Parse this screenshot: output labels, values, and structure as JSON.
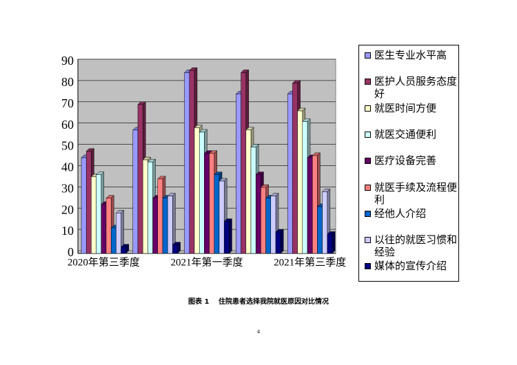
{
  "chart_data": {
    "type": "bar3d",
    "caption": "图表 1　 住院患者选择我院就医原因对比情况",
    "page_number": "4",
    "categories": [
      "2020年第三季度",
      null,
      "2021年第一季度",
      null,
      "2021年第三季度"
    ],
    "ylim": [
      0,
      90
    ],
    "yticks": [
      0,
      10,
      20,
      30,
      40,
      50,
      60,
      70,
      80,
      90
    ],
    "grid": true,
    "legend": "right",
    "series": [
      {
        "name": "医生专业水平高",
        "color": "#9999ff",
        "values": [
          45,
          58,
          85,
          75,
          75
        ]
      },
      {
        "name": "医护人员服务态度好",
        "color": "#993366",
        "values": [
          48,
          70,
          86,
          85,
          80
        ]
      },
      {
        "name": "就医时间方便",
        "color": "#ffffcc",
        "values": [
          36,
          44,
          59,
          58,
          67
        ]
      },
      {
        "name": "就医交通便利",
        "color": "#ccffff",
        "values": [
          37,
          43,
          57,
          50,
          62
        ]
      },
      {
        "name": "医疗设备完善",
        "color": "#660066",
        "values": [
          23,
          26,
          47,
          37,
          45
        ]
      },
      {
        "name": "就医手续及流程便利",
        "color": "#ff8080",
        "values": [
          26,
          35,
          47,
          31,
          46
        ]
      },
      {
        "name": "经他人介绍",
        "color": "#0066cc",
        "values": [
          12,
          26,
          37,
          26,
          22
        ]
      },
      {
        "name": "以往的就医习惯和经验",
        "color": "#ccccff",
        "values": [
          19,
          27,
          34,
          27,
          29
        ]
      },
      {
        "name": "媒体的宣传介绍",
        "color": "#000080",
        "values": [
          3,
          4,
          15,
          10,
          9
        ]
      }
    ]
  }
}
